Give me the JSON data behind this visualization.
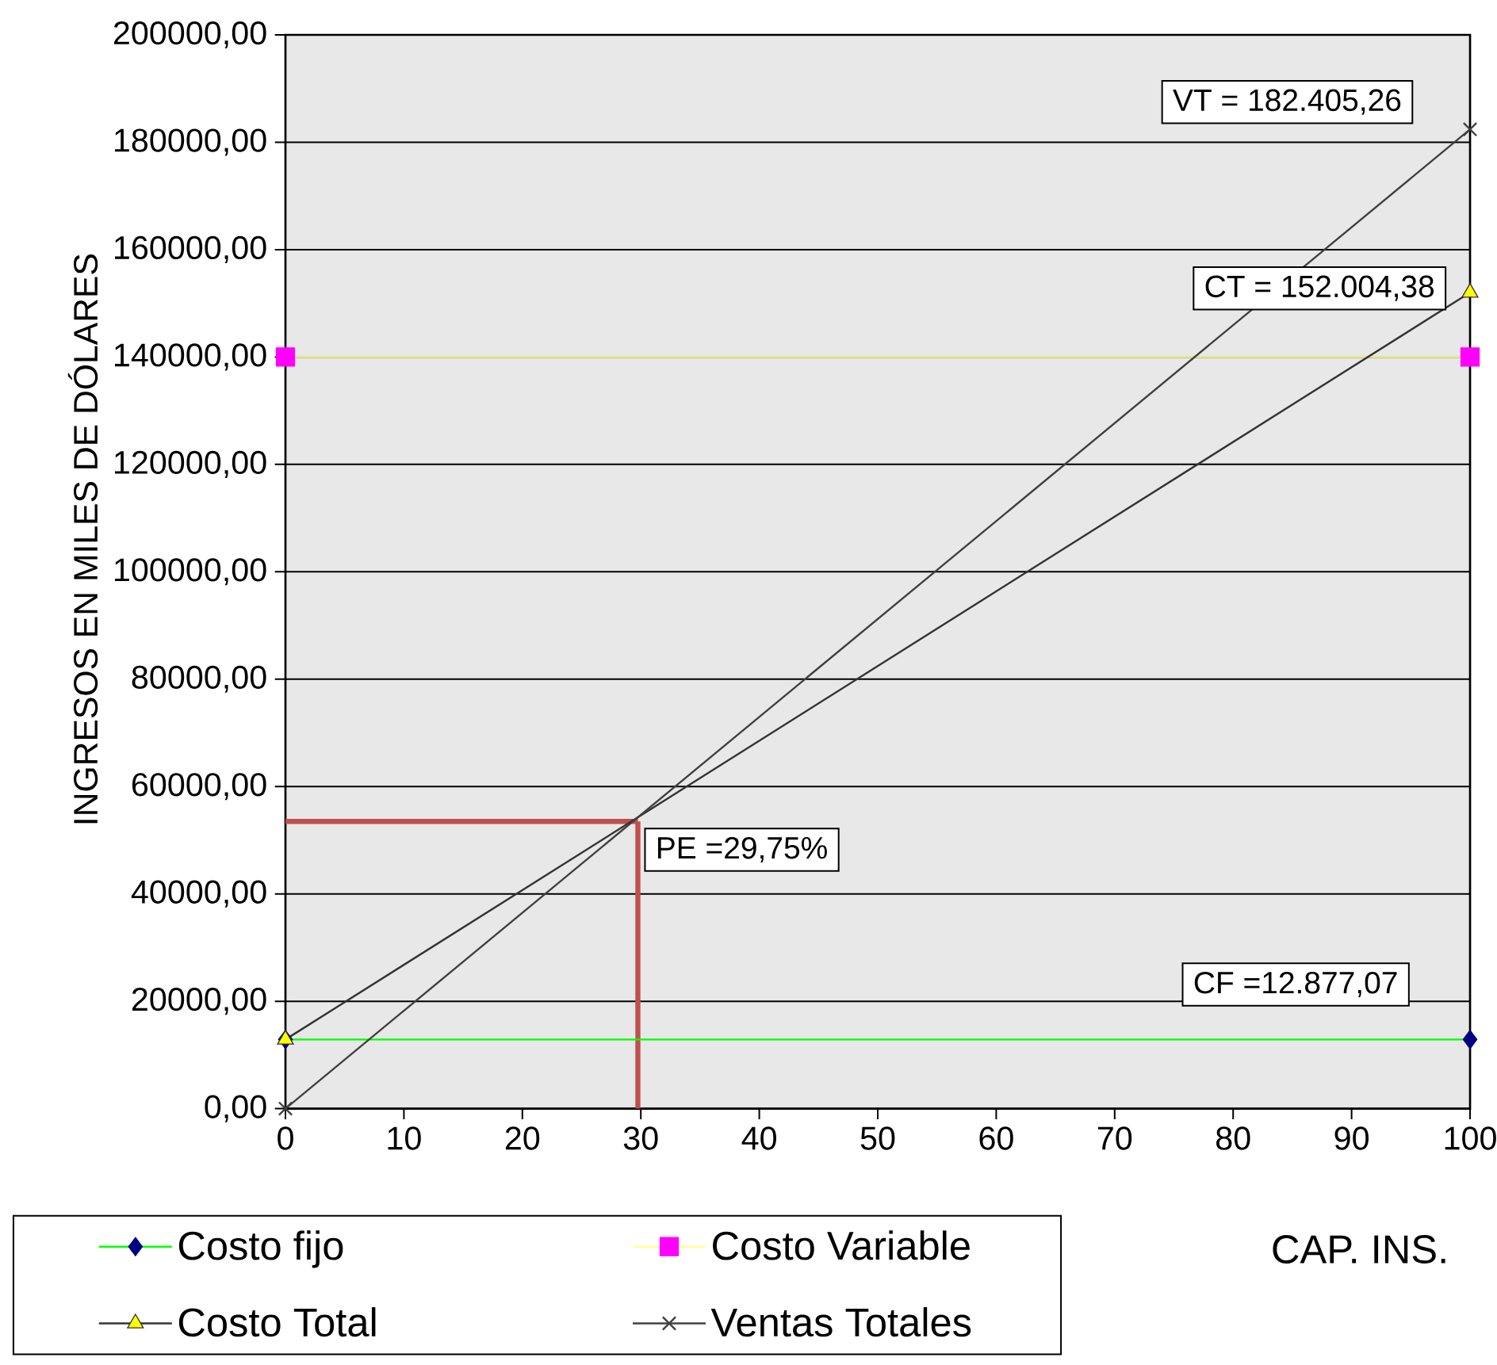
{
  "chart_data": {
    "type": "line",
    "xlabel": "CAP. INS.",
    "ylabel": "INGRESOS EN MILES DE DÓLARES",
    "x": [
      0,
      100
    ],
    "xlim": [
      0,
      100
    ],
    "ylim": [
      0,
      200000
    ],
    "xticks": [
      0,
      10,
      20,
      30,
      40,
      50,
      60,
      70,
      80,
      90,
      100
    ],
    "yticks": [
      {
        "value": 0,
        "label": "0,00"
      },
      {
        "value": 20000,
        "label": "20000,00"
      },
      {
        "value": 40000,
        "label": "40000,00"
      },
      {
        "value": 60000,
        "label": "60000,00"
      },
      {
        "value": 80000,
        "label": "80000,00"
      },
      {
        "value": 100000,
        "label": "100000,00"
      },
      {
        "value": 120000,
        "label": "120000,00"
      },
      {
        "value": 140000,
        "label": "140000,00"
      },
      {
        "value": 160000,
        "label": "160000,00"
      },
      {
        "value": 180000,
        "label": "180000,00"
      },
      {
        "value": 200000,
        "label": "200000,00"
      }
    ],
    "grid": "y",
    "legend": "bottom left",
    "series": [
      {
        "name": "Costo fijo",
        "color": "#00ff00",
        "colors": [
          "#000080",
          "#000080"
        ],
        "marker": "diamond",
        "values": [
          12877.07,
          12877.07
        ]
      },
      {
        "name": "Costo Variable",
        "color": "#ffff99",
        "colors": [
          "#ff00ff",
          "#ff00ff"
        ],
        "marker": "square",
        "values": [
          140000,
          140000
        ]
      },
      {
        "name": "Costo Total",
        "color": "#333333",
        "colors": [
          "#ffff00",
          "#ffff00"
        ],
        "marker": "triangle",
        "values": [
          12877.07,
          152004.38
        ]
      },
      {
        "name": "Ventas Totales",
        "color": "#404040",
        "colors": [
          "#404040",
          "#404040"
        ],
        "marker": "cross",
        "values": [
          0,
          182405.26
        ]
      }
    ],
    "ref_lines": [
      {
        "axis": "x",
        "value": 29.75,
        "label": "PE =29,75%",
        "color": "#c0504d"
      },
      {
        "axis": "y",
        "value": 53500,
        "color": "#c0504d"
      }
    ],
    "annotations": [
      "VT = 182.405,26",
      "CT = 152.004,38",
      "CF =12.877,07"
    ]
  }
}
